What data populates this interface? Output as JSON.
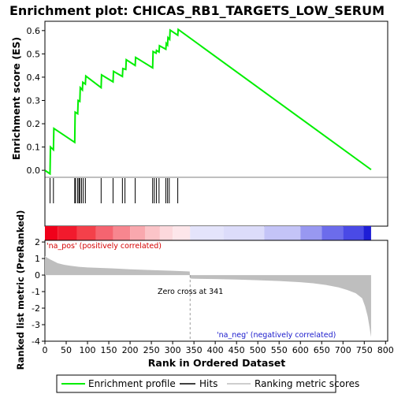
{
  "chart_data": {
    "title": "Enrichment plot: CHICAS_RB1_TARGETS_LOW_SERUM",
    "colors": {
      "enrichment": "#00ee00",
      "hits": "#000000",
      "metric_fill": "#bebebe",
      "zero_cross_line": "#999999",
      "pos_label": "#d40000",
      "neg_label": "#1a1acc"
    },
    "top_panel": {
      "type": "line",
      "ylabel": "Enrichment score (ES)",
      "ylim": [
        -0.03,
        0.64
      ],
      "yticks": [
        "0.0",
        "0.1",
        "0.2",
        "0.3",
        "0.4",
        "0.5",
        "0.6"
      ],
      "series": [
        {
          "name": "Enrichment profile",
          "x": [
            0,
            12,
            13,
            20,
            21,
            70,
            71,
            77,
            78,
            82,
            83,
            88,
            89,
            95,
            96,
            132,
            133,
            160,
            161,
            182,
            183,
            190,
            191,
            212,
            213,
            253,
            254,
            261,
            262,
            268,
            269,
            284,
            285,
            288,
            289,
            293,
            294,
            312,
            313,
            766
          ],
          "y": [
            0.0,
            -0.015,
            0.1,
            0.088,
            0.18,
            0.12,
            0.25,
            0.243,
            0.3,
            0.296,
            0.355,
            0.345,
            0.378,
            0.37,
            0.405,
            0.355,
            0.41,
            0.38,
            0.425,
            0.403,
            0.437,
            0.433,
            0.475,
            0.45,
            0.485,
            0.44,
            0.51,
            0.503,
            0.515,
            0.508,
            0.535,
            0.52,
            0.545,
            0.538,
            0.57,
            0.562,
            0.602,
            0.58,
            0.605,
            0.003
          ]
        }
      ]
    },
    "hits": [
      12,
      20,
      70,
      72,
      77,
      80,
      82,
      86,
      90,
      95,
      132,
      160,
      182,
      188,
      212,
      253,
      257,
      262,
      268,
      284,
      288,
      292,
      312
    ],
    "color_bar": {
      "segments": [
        {
          "from": 0,
          "to": 30,
          "color": "#f0001a"
        },
        {
          "from": 30,
          "to": 75,
          "color": "#f21a2d"
        },
        {
          "from": 75,
          "to": 120,
          "color": "#f4404a"
        },
        {
          "from": 120,
          "to": 160,
          "color": "#f56470"
        },
        {
          "from": 160,
          "to": 200,
          "color": "#f7868f"
        },
        {
          "from": 200,
          "to": 235,
          "color": "#f9a8ae"
        },
        {
          "from": 235,
          "to": 270,
          "color": "#fbc4c8"
        },
        {
          "from": 270,
          "to": 300,
          "color": "#fcd8dc"
        },
        {
          "from": 300,
          "to": 341,
          "color": "#fde6ea"
        },
        {
          "from": 341,
          "to": 420,
          "color": "#e4e4fb"
        },
        {
          "from": 420,
          "to": 515,
          "color": "#dcdcfa"
        },
        {
          "from": 515,
          "to": 600,
          "color": "#c4c4f7"
        },
        {
          "from": 600,
          "to": 650,
          "color": "#9898f1"
        },
        {
          "from": 650,
          "to": 700,
          "color": "#6c6ceb"
        },
        {
          "from": 700,
          "to": 748,
          "color": "#4a4ae6"
        },
        {
          "from": 748,
          "to": 766,
          "color": "#1e1ed6"
        }
      ]
    },
    "bottom_panel": {
      "type": "area",
      "ylabel": "Ranked list metric (PreRanked)",
      "xlabel": "Rank in Ordered Dataset",
      "ylim": [
        -4.0,
        2.1
      ],
      "yticks": [
        "-4",
        "-3",
        "-2",
        "-1",
        "0",
        "1",
        "2"
      ],
      "xlim": [
        0,
        805
      ],
      "xticks": [
        "0",
        "50",
        "100",
        "150",
        "200",
        "250",
        "300",
        "350",
        "400",
        "450",
        "500",
        "550",
        "600",
        "650",
        "700",
        "750",
        "800"
      ],
      "metric": {
        "x": [
          0,
          5,
          12,
          20,
          30,
          45,
          60,
          80,
          100,
          130,
          160,
          200,
          250,
          300,
          340,
          341,
          345,
          400,
          450,
          500,
          550,
          600,
          630,
          660,
          690,
          710,
          730,
          745,
          752,
          758,
          762,
          765,
          766
        ],
        "y": [
          1.15,
          1.05,
          0.95,
          0.85,
          0.72,
          0.62,
          0.56,
          0.5,
          0.46,
          0.43,
          0.4,
          0.35,
          0.3,
          0.26,
          0.22,
          -0.2,
          -0.22,
          -0.24,
          -0.27,
          -0.31,
          -0.36,
          -0.43,
          -0.5,
          -0.6,
          -0.75,
          -0.9,
          -1.1,
          -1.4,
          -1.9,
          -2.5,
          -3.1,
          -3.6,
          -3.75
        ]
      },
      "zero_cross_rank": 341,
      "zero_cross_label": "Zero cross at 341",
      "pos_label": "'na_pos' (positively correlated)",
      "neg_label": "'na_neg' (negatively correlated)"
    },
    "legend": [
      {
        "label": "Enrichment profile",
        "color": "#00ee00",
        "kind": "line"
      },
      {
        "label": "Hits",
        "color": "#000000",
        "kind": "line"
      },
      {
        "label": "Ranking metric scores",
        "color": "#bebebe",
        "kind": "line"
      }
    ]
  }
}
